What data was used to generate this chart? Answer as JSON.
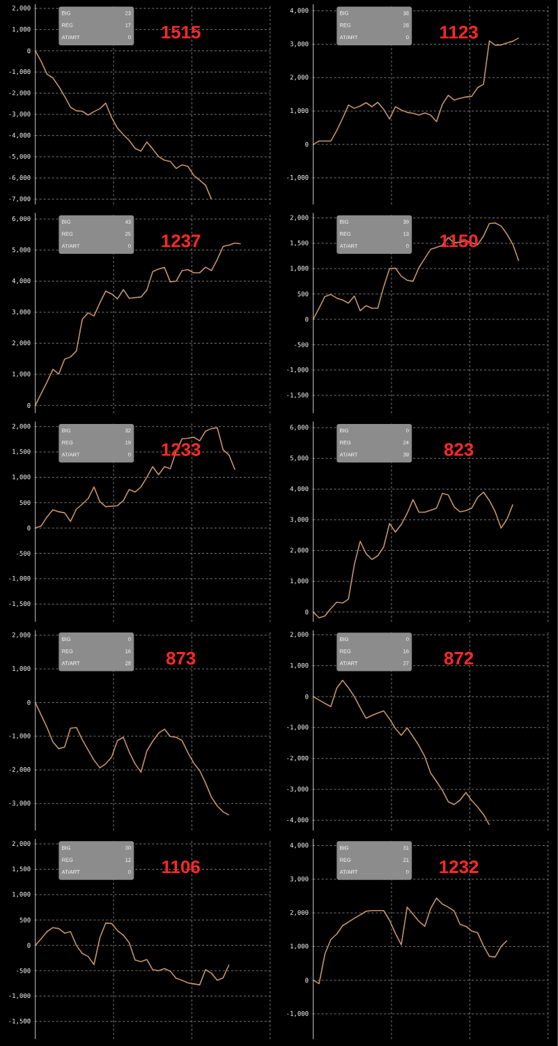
{
  "chart_data": [
    {
      "type": "line",
      "title": "1515",
      "annotations": [
        "BIG",
        "23",
        "REG",
        "17",
        "AT/ART",
        "0"
      ],
      "color": "#c8946a",
      "grid": true,
      "tick_labels": "y",
      "ylim": [
        -7250,
        2200
      ],
      "yticks": [
        {
          "value": -7000,
          "label": "-7,000"
        },
        {
          "value": -6000,
          "label": "-6,000"
        },
        {
          "value": -5000,
          "label": "-5,000"
        },
        {
          "value": -4000,
          "label": "-4,000"
        },
        {
          "value": -3000,
          "label": "-3,000"
        },
        {
          "value": -2000,
          "label": "-2,000"
        },
        {
          "value": -1000,
          "label": "-1,000"
        },
        0,
        {
          "value": 1000,
          "label": "1,000"
        },
        {
          "value": 2000,
          "label": "2,000"
        }
      ],
      "categories": [
        null,
        null,
        null,
        null,
        null,
        null,
        null,
        null,
        null,
        null,
        null,
        null,
        null,
        null,
        null,
        null,
        null,
        null,
        null,
        null,
        null,
        null,
        null,
        null,
        null,
        null,
        null,
        null,
        null,
        null,
        null,
        null,
        null,
        null,
        null,
        null,
        null,
        null,
        null,
        null,
        null
      ],
      "values": [
        0,
        -500,
        -1100,
        -1280,
        -1680,
        -2150,
        -2660,
        -2830,
        -2850,
        -3030,
        -2870,
        -2730,
        -2470,
        -3150,
        -3650,
        -3950,
        -4230,
        -4600,
        -4730,
        -4300,
        -4630,
        -4990,
        -5160,
        -5220,
        -5550,
        -5380,
        -5450,
        -5880,
        -6100,
        -6340,
        -7000,
        null,
        null,
        null,
        null,
        null,
        null,
        null,
        null,
        null,
        null
      ]
    },
    {
      "type": "line",
      "title": "1123",
      "annotations": [
        "BIG",
        "38",
        "REG",
        "28",
        "AT/ART",
        "0"
      ],
      "color": "#c8946a",
      "grid": true,
      "tick_labels": "y",
      "ylim": [
        -1800,
        4200
      ],
      "yticks": [
        {
          "value": -1000,
          "label": "-1,000"
        },
        0,
        {
          "value": 1000,
          "label": "1,000"
        },
        {
          "value": 2000,
          "label": "2,000"
        },
        {
          "value": 3000,
          "label": "3,000"
        },
        {
          "value": 4000,
          "label": "4,000"
        }
      ],
      "categories": [
        null,
        null,
        null,
        null,
        null,
        null,
        null,
        null,
        null,
        null,
        null,
        null,
        null,
        null,
        null,
        null,
        null,
        null,
        null,
        null,
        null,
        null,
        null,
        null,
        null,
        null,
        null,
        null,
        null,
        null,
        null,
        null,
        null,
        null,
        null,
        null,
        null,
        null,
        null,
        null,
        null
      ],
      "values": [
        0,
        100,
        100,
        100,
        410,
        780,
        1180,
        1080,
        1150,
        1250,
        1130,
        1260,
        1050,
        760,
        1130,
        1030,
        960,
        930,
        880,
        940,
        880,
        680,
        1200,
        1470,
        1330,
        1380,
        1420,
        1440,
        1700,
        1800,
        3100,
        2970,
        2980,
        3040,
        3090,
        3190,
        null,
        null,
        null,
        null,
        null
      ]
    },
    {
      "type": "line",
      "title": "1237",
      "annotations": [
        "BIG",
        "43",
        "REG",
        "25",
        "AT/ART",
        "0"
      ],
      "color": "#c8946a",
      "grid": true,
      "tick_labels": "y",
      "ylim": [
        -250,
        6200
      ],
      "yticks": [
        0,
        {
          "value": 1000,
          "label": "1,000"
        },
        {
          "value": 2000,
          "label": "2,000"
        },
        {
          "value": 3000,
          "label": "3,000"
        },
        {
          "value": 4000,
          "label": "4,000"
        },
        {
          "value": 5000,
          "label": "5,000"
        },
        {
          "value": 6000,
          "label": "6,000"
        }
      ],
      "categories": [
        null,
        null,
        null,
        null,
        null,
        null,
        null,
        null,
        null,
        null,
        null,
        null,
        null,
        null,
        null,
        null,
        null,
        null,
        null,
        null,
        null,
        null,
        null,
        null,
        null,
        null,
        null,
        null,
        null,
        null,
        null,
        null,
        null,
        null,
        null,
        null,
        null,
        null,
        null,
        null,
        null
      ],
      "values": [
        0,
        380,
        750,
        1160,
        1010,
        1490,
        1560,
        1750,
        2770,
        2980,
        2880,
        3300,
        3680,
        3590,
        3430,
        3730,
        3450,
        3470,
        3490,
        3710,
        4310,
        4390,
        4440,
        3980,
        4000,
        4340,
        4370,
        4270,
        4270,
        4450,
        4340,
        4700,
        5120,
        5160,
        5230,
        5200,
        null,
        null,
        null,
        null,
        null
      ]
    },
    {
      "type": "line",
      "title": "1150",
      "annotations": [
        "BIG",
        "39",
        "REG",
        "13",
        "AT/ART",
        "0"
      ],
      "color": "#c8946a",
      "grid": true,
      "tick_labels": "y",
      "ylim": [
        -1850,
        2100
      ],
      "yticks": [
        {
          "value": -1500,
          "label": "-1,500"
        },
        {
          "value": -1000,
          "label": "-1,000"
        },
        -500,
        0,
        500,
        {
          "value": 1000,
          "label": "1,000"
        },
        {
          "value": 1500,
          "label": "1,500"
        },
        {
          "value": 2000,
          "label": "2,000"
        }
      ],
      "categories": [
        null,
        null,
        null,
        null,
        null,
        null,
        null,
        null,
        null,
        null,
        null,
        null,
        null,
        null,
        null,
        null,
        null,
        null,
        null,
        null,
        null,
        null,
        null,
        null,
        null,
        null,
        null,
        null,
        null,
        null,
        null,
        null,
        null,
        null,
        null,
        null,
        null,
        null,
        null,
        null,
        null
      ],
      "values": [
        0,
        220,
        450,
        490,
        420,
        380,
        320,
        460,
        170,
        270,
        220,
        220,
        640,
        1000,
        1010,
        850,
        770,
        750,
        1020,
        1200,
        1380,
        1420,
        1460,
        1610,
        1510,
        1520,
        1550,
        1510,
        1470,
        1640,
        1890,
        1900,
        1840,
        1680,
        1480,
        1150,
        null,
        null,
        null,
        null,
        null
      ]
    },
    {
      "type": "line",
      "title": "1233",
      "annotations": [
        "BIG",
        "32",
        "REG",
        "19",
        "AT/ART",
        "0"
      ],
      "color": "#c8946a",
      "grid": true,
      "tick_labels": "y",
      "ylim": [
        -1850,
        2100
      ],
      "yticks": [
        {
          "value": -1500,
          "label": "-1,500"
        },
        {
          "value": -1000,
          "label": "-1,000"
        },
        -500,
        0,
        500,
        {
          "value": 1000,
          "label": "1,000"
        },
        {
          "value": 1500,
          "label": "1,500"
        },
        {
          "value": 2000,
          "label": "2,000"
        }
      ],
      "categories": [
        null,
        null,
        null,
        null,
        null,
        null,
        null,
        null,
        null,
        null,
        null,
        null,
        null,
        null,
        null,
        null,
        null,
        null,
        null,
        null,
        null,
        null,
        null,
        null,
        null,
        null,
        null,
        null,
        null,
        null,
        null,
        null,
        null,
        null,
        null,
        null,
        null,
        null,
        null,
        null,
        null
      ],
      "values": [
        0,
        40,
        220,
        360,
        320,
        300,
        130,
        370,
        470,
        580,
        810,
        520,
        420,
        430,
        440,
        540,
        760,
        710,
        810,
        1000,
        1210,
        1050,
        1210,
        1170,
        1510,
        1760,
        1770,
        1790,
        1720,
        1910,
        1960,
        1980,
        1540,
        1440,
        1150,
        null,
        null,
        null,
        null,
        null,
        null
      ]
    },
    {
      "type": "line",
      "title": "823",
      "annotations": [
        "BIG",
        "0",
        "REG",
        "24",
        "AT/ART",
        "39"
      ],
      "color": "#c8946a",
      "grid": true,
      "tick_labels": "y",
      "ylim": [
        -320,
        6200
      ],
      "yticks": [
        0,
        {
          "value": 1000,
          "label": "1,000"
        },
        {
          "value": 2000,
          "label": "2,000"
        },
        {
          "value": 3000,
          "label": "3,000"
        },
        {
          "value": 4000,
          "label": "4,000"
        },
        {
          "value": 5000,
          "label": "5,000"
        },
        {
          "value": 6000,
          "label": "6,000"
        }
      ],
      "categories": [
        null,
        null,
        null,
        null,
        null,
        null,
        null,
        null,
        null,
        null,
        null,
        null,
        null,
        null,
        null,
        null,
        null,
        null,
        null,
        null,
        null,
        null,
        null,
        null,
        null,
        null,
        null,
        null,
        null,
        null,
        null,
        null,
        null,
        null,
        null,
        null,
        null,
        null,
        null,
        null,
        null
      ],
      "values": [
        0,
        -190,
        -130,
        110,
        320,
        290,
        420,
        1540,
        2300,
        1900,
        1710,
        1830,
        2120,
        2880,
        2600,
        2850,
        3210,
        3660,
        3250,
        3250,
        3310,
        3380,
        3860,
        3810,
        3420,
        3260,
        3300,
        3380,
        3730,
        3900,
        3630,
        3260,
        2730,
        3020,
        3500,
        null,
        null,
        null,
        null,
        null,
        null
      ]
    },
    {
      "type": "line",
      "title": "873",
      "annotations": [
        "BIG",
        "0",
        "REG",
        "16",
        "AT/ART",
        "28"
      ],
      "color": "#c8946a",
      "grid": true,
      "tick_labels": "y",
      "ylim": [
        -3800,
        2150
      ],
      "yticks": [
        {
          "value": -3000,
          "label": "-3,000"
        },
        {
          "value": -2000,
          "label": "-2,000"
        },
        {
          "value": -1000,
          "label": "-1,000"
        },
        0,
        {
          "value": 1000,
          "label": "1,000"
        },
        {
          "value": 2000,
          "label": "2,000"
        }
      ],
      "categories": [
        null,
        null,
        null,
        null,
        null,
        null,
        null,
        null,
        null,
        null,
        null,
        null,
        null,
        null,
        null,
        null,
        null,
        null,
        null,
        null,
        null,
        null,
        null,
        null,
        null,
        null,
        null,
        null,
        null,
        null,
        null,
        null,
        null,
        null,
        null,
        null,
        null,
        null,
        null,
        null,
        null
      ],
      "values": [
        0,
        -370,
        -740,
        -1170,
        -1370,
        -1320,
        -760,
        -740,
        -1100,
        -1410,
        -1710,
        -1940,
        -1820,
        -1620,
        -1130,
        -1030,
        -1470,
        -1820,
        -2070,
        -1440,
        -1150,
        -910,
        -790,
        -1010,
        -1030,
        -1130,
        -1490,
        -1800,
        -2020,
        -2390,
        -2810,
        -3070,
        -3250,
        -3340,
        null,
        null,
        null,
        null,
        null,
        null,
        null
      ]
    },
    {
      "type": "line",
      "title": "872",
      "annotations": [
        "BIG",
        "0",
        "REG",
        "16",
        "AT/ART",
        "27"
      ],
      "color": "#c8946a",
      "grid": true,
      "tick_labels": "y",
      "ylim": [
        -4330,
        2150
      ],
      "yticks": [
        {
          "value": -4000,
          "label": "-4,000"
        },
        {
          "value": -3000,
          "label": "-3,000"
        },
        {
          "value": -2000,
          "label": "-2,000"
        },
        {
          "value": -1000,
          "label": "-1,000"
        },
        0,
        {
          "value": 1000,
          "label": "1,000"
        },
        {
          "value": 2000,
          "label": "2,000"
        }
      ],
      "categories": [
        null,
        null,
        null,
        null,
        null,
        null,
        null,
        null,
        null,
        null,
        null,
        null,
        null,
        null,
        null,
        null,
        null,
        null,
        null,
        null,
        null,
        null,
        null,
        null,
        null,
        null,
        null,
        null,
        null,
        null,
        null,
        null,
        null,
        null,
        null,
        null,
        null,
        null,
        null,
        null,
        null
      ],
      "values": [
        0,
        -110,
        -220,
        -320,
        270,
        530,
        290,
        0,
        -360,
        -700,
        -610,
        -530,
        -460,
        -720,
        -1030,
        -1250,
        -1010,
        -1290,
        -1580,
        -1940,
        -2470,
        -2740,
        -3030,
        -3400,
        -3490,
        -3350,
        -3100,
        -3360,
        -3570,
        -3810,
        -4150,
        null,
        null,
        null,
        null,
        null,
        null,
        null,
        null,
        null,
        null
      ]
    },
    {
      "type": "line",
      "title": "1106",
      "annotations": [
        "BIG",
        "30",
        "REG",
        "12",
        "AT/ART",
        "0"
      ],
      "color": "#c8946a",
      "grid": true,
      "tick_labels": "y",
      "ylim": [
        -1850,
        2100
      ],
      "yticks": [
        {
          "value": -1500,
          "label": "-1,500"
        },
        {
          "value": -1000,
          "label": "-1,000"
        },
        -500,
        0,
        500,
        {
          "value": 1000,
          "label": "1,000"
        },
        {
          "value": 1500,
          "label": "1,500"
        },
        {
          "value": 2000,
          "label": "2,000"
        }
      ],
      "categories": [
        null,
        null,
        null,
        null,
        null,
        null,
        null,
        null,
        null,
        null,
        null,
        null,
        null,
        null,
        null,
        null,
        null,
        null,
        null,
        null,
        null,
        null,
        null,
        null,
        null,
        null,
        null,
        null,
        null,
        null,
        null,
        null,
        null,
        null,
        null,
        null,
        null,
        null,
        null,
        null,
        null
      ],
      "values": [
        0,
        130,
        270,
        350,
        330,
        240,
        270,
        0,
        -160,
        -220,
        -380,
        150,
        440,
        430,
        290,
        200,
        50,
        -290,
        -320,
        -280,
        -480,
        -500,
        -460,
        -510,
        -650,
        -690,
        -740,
        -760,
        -780,
        -480,
        -550,
        -690,
        -640,
        -380,
        null,
        null,
        null,
        null,
        null,
        null,
        null
      ]
    },
    {
      "type": "line",
      "title": "1232",
      "annotations": [
        "BIG",
        "31",
        "REG",
        "21",
        "AT/ART",
        "0"
      ],
      "color": "#c8946a",
      "grid": true,
      "tick_labels": "y",
      "ylim": [
        -1750,
        4200
      ],
      "yticks": [
        {
          "value": -1000,
          "label": "-1,000"
        },
        0,
        {
          "value": 1000,
          "label": "1,000"
        },
        {
          "value": 2000,
          "label": "2,000"
        },
        {
          "value": 3000,
          "label": "3,000"
        },
        {
          "value": 4000,
          "label": "4,000"
        }
      ],
      "categories": [
        null,
        null,
        null,
        null,
        null,
        null,
        null,
        null,
        null,
        null,
        null,
        null,
        null,
        null,
        null,
        null,
        null,
        null,
        null,
        null,
        null,
        null,
        null,
        null,
        null,
        null,
        null,
        null,
        null,
        null,
        null,
        null,
        null,
        null,
        null,
        null,
        null,
        null,
        null,
        null,
        null
      ],
      "values": [
        0,
        -100,
        780,
        1210,
        1370,
        1620,
        1730,
        1840,
        1940,
        2050,
        2070,
        2070,
        2070,
        1780,
        1390,
        1050,
        2170,
        1960,
        1750,
        1600,
        2130,
        2440,
        2260,
        2170,
        2060,
        1660,
        1600,
        1460,
        1410,
        1020,
        710,
        690,
        1000,
        1180,
        null,
        null,
        null,
        null,
        null,
        null,
        null
      ]
    }
  ]
}
